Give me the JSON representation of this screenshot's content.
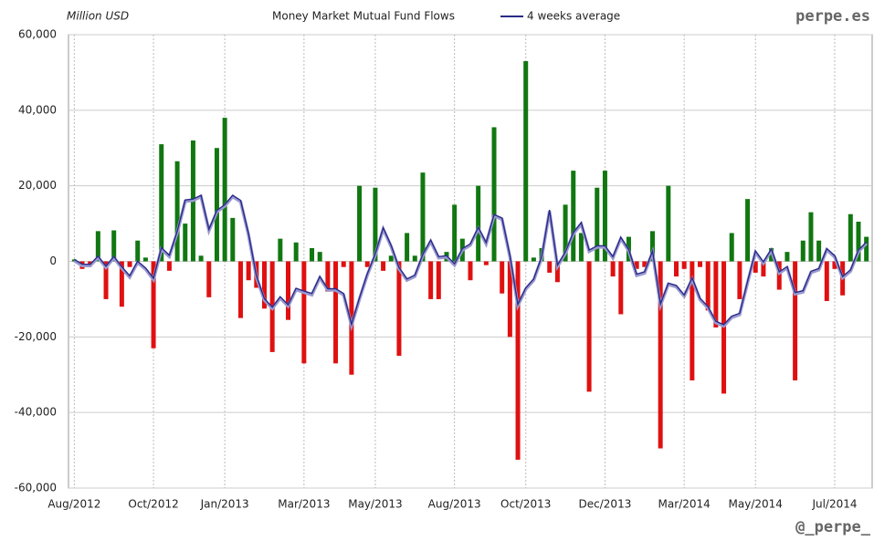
{
  "chart_data": {
    "type": "bar",
    "title": "Money Market Mutual Fund Flows",
    "ylabel": "Million USD",
    "watermark_top": "perpe.es",
    "watermark_bottom": "@_perpe_",
    "grid": true,
    "ylim": [
      -60000,
      60000
    ],
    "yticks": [
      {
        "value": -60000,
        "label": "-60,000"
      },
      {
        "value": -40000,
        "label": "-40,000"
      },
      {
        "value": -20000,
        "label": "-20,000"
      },
      0,
      {
        "value": 20000,
        "label": "20,000"
      },
      {
        "value": 40000,
        "label": "40,000"
      },
      {
        "value": 60000,
        "label": "60,000"
      }
    ],
    "categories": [
      "Aug/2012",
      null,
      null,
      null,
      null,
      null,
      null,
      null,
      null,
      null,
      "Oct/2012",
      null,
      null,
      null,
      null,
      null,
      null,
      null,
      null,
      "Jan/2013",
      null,
      null,
      null,
      null,
      null,
      null,
      null,
      null,
      null,
      "Mar/2013",
      null,
      null,
      null,
      null,
      null,
      null,
      null,
      null,
      "May/2013",
      null,
      null,
      null,
      null,
      null,
      null,
      null,
      null,
      null,
      "Aug/2013",
      null,
      null,
      null,
      null,
      null,
      null,
      null,
      null,
      "Oct/2013",
      null,
      null,
      null,
      null,
      null,
      null,
      null,
      null,
      null,
      "Dec/2013",
      null,
      null,
      null,
      null,
      null,
      null,
      null,
      null,
      null,
      "Mar/2014",
      null,
      null,
      null,
      null,
      null,
      null,
      null,
      null,
      "May/2014",
      null,
      null,
      null,
      null,
      null,
      null,
      null,
      null,
      null,
      "Jul/2014",
      null,
      null,
      null,
      null
    ],
    "series": [
      {
        "type": "bar",
        "positive_color": "#117711",
        "negative_color": "#e01010",
        "values": [
          500,
          -2000,
          -1000,
          8000,
          -10000,
          8200,
          -12000,
          -1500,
          5500,
          1000,
          -23000,
          31000,
          -2500,
          26500,
          10000,
          32000,
          1500,
          -9500,
          30000,
          38000,
          11500,
          -15000,
          -5000,
          -7000,
          -12500,
          -24000,
          6000,
          -15500,
          5000,
          -27000,
          3500,
          2500,
          -8000,
          -27000,
          -1500,
          -30000,
          20000,
          -1500,
          19500,
          -2500,
          1500,
          -25000,
          7500,
          1500,
          23500,
          -10000,
          -10000,
          2500,
          15000,
          6000,
          -5000,
          20000,
          -1000,
          35500,
          -8500,
          -20000,
          -52500,
          53000,
          1000,
          3500,
          -3000,
          -5500,
          15000,
          24000,
          7500,
          -34500,
          19500,
          24000,
          -4000,
          -14000,
          6500,
          -2000,
          -1500,
          8000,
          -49500,
          20000,
          -4000,
          -2000,
          -31500,
          -1500,
          -13000,
          -17500,
          -35000,
          7500,
          -10000,
          16500,
          -3000,
          -4000,
          3500,
          -7500,
          2500,
          -31500,
          5500,
          13000,
          5500,
          -10500,
          -2000,
          -9000,
          12500,
          10500,
          6500
        ]
      },
      {
        "type": "line",
        "name": "4 weeks average",
        "color": "#2a2a8a",
        "values": [
          500,
          -750,
          -800,
          1375,
          -1250,
          1300,
          -1450,
          -3825,
          50,
          -1750,
          -4500,
          3625,
          1625,
          8000,
          16250,
          16500,
          17500,
          8500,
          13500,
          15000,
          17500,
          16125,
          7375,
          -3875,
          -9875,
          -12125,
          -9375,
          -11500,
          -7125,
          -7875,
          -8500,
          -4000,
          -7250,
          -7250,
          -8500,
          -16625,
          -9625,
          -3250,
          2000,
          8875,
          4250,
          -1625,
          -4625,
          -3625,
          1875,
          5625,
          1250,
          1500,
          -625,
          3375,
          4625,
          9000,
          5000,
          12375,
          11500,
          1500,
          -11375,
          -7000,
          -4625,
          1250,
          13625,
          -1000,
          2500,
          7625,
          10250,
          3000,
          4125,
          4125,
          1250,
          6375,
          3125,
          -3375,
          -2750,
          2750,
          -11250,
          -5750,
          -6375,
          -8875,
          -4375,
          -9750,
          -12000,
          -15875,
          -16750,
          -14500,
          -13750,
          -5250,
          2750,
          -125,
          3250,
          -2750,
          -1375,
          -8250,
          -7750,
          -2625,
          -1875,
          3375,
          1500,
          -4000,
          -2250,
          3000,
          5125
        ]
      }
    ]
  }
}
